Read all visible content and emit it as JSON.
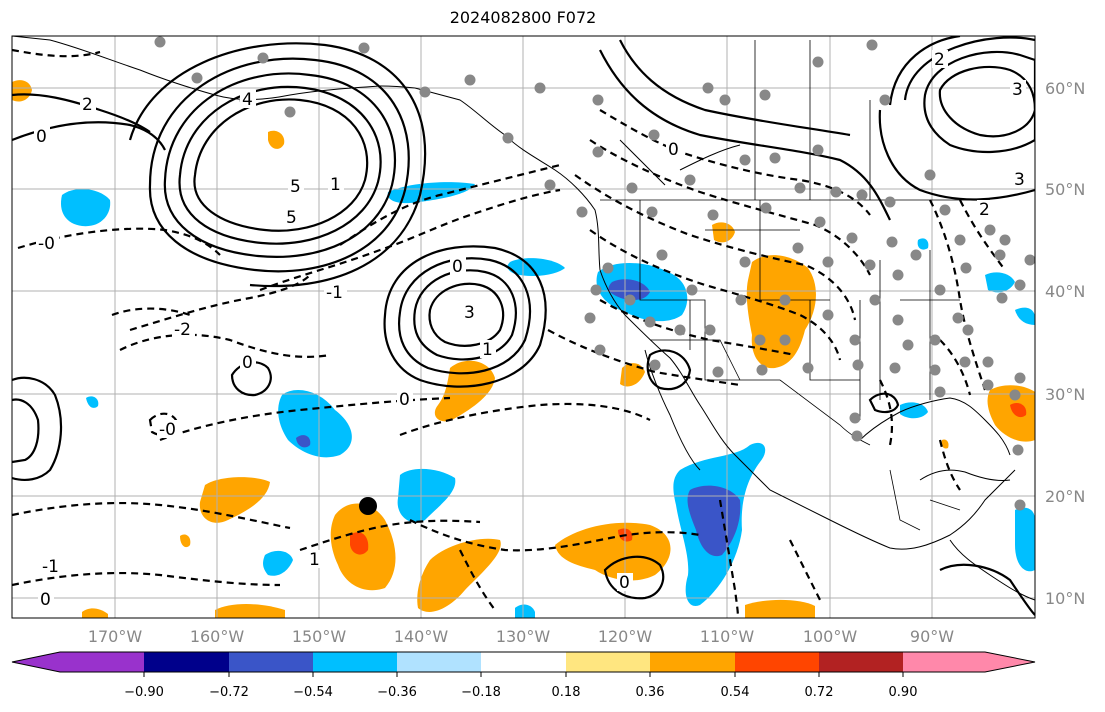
{
  "title": "2024082800 F072",
  "lat_labels": [
    "60°N",
    "50°N",
    "40°N",
    "30°N",
    "20°N",
    "10°N"
  ],
  "lon_labels": [
    "170°W",
    "160°W",
    "150°W",
    "140°W",
    "130°W",
    "120°W",
    "110°W",
    "100°W",
    "90°W"
  ],
  "colorbar": {
    "ticks": [
      "−0.90",
      "−0.72",
      "−0.54",
      "−0.36",
      "−0.18",
      "0.18",
      "0.36",
      "0.54",
      "0.72",
      "0.90"
    ],
    "colors": [
      "#9932cc",
      "#00008b",
      "#3a55c8",
      "#00bfff",
      "#b0e2ff",
      "#ffffff",
      "#ffe680",
      "#ffa500",
      "#ff4500",
      "#b22222",
      "#ff88aa"
    ]
  },
  "fill_colors": {
    "orange": "#ffa500",
    "red_orange": "#ff4500",
    "light_blue": "#00bfff",
    "dark_blue": "#3a55c8",
    "pale_blue": "#b0e2ff",
    "station": "#888888"
  },
  "contour_labels": [
    "2",
    "0",
    "5",
    "3",
    "4",
    "1",
    "-1",
    "-2",
    "-0",
    "0",
    "3",
    "2",
    "1",
    "5",
    "3",
    "2",
    "0",
    "-0",
    "1",
    "-1",
    "0",
    "0",
    "0",
    "0"
  ]
}
